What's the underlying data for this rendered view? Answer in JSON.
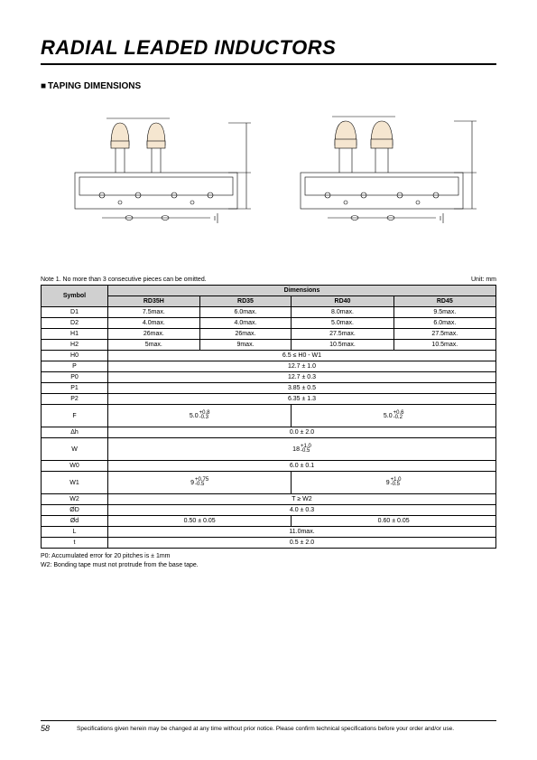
{
  "title": "RADIAL LEADED INDUCTORS",
  "subtitle": "TAPING DIMENSIONS",
  "note1": "Note 1. No more than 3 consecutive pieces can be omitted.",
  "unit": "Unit: mm",
  "header": {
    "symbol": "Symbol",
    "dimensions": "Dimensions",
    "cols": [
      "RD35H",
      "RD35",
      "RD40",
      "RD45"
    ]
  },
  "rows4": [
    {
      "sym": "D1",
      "vals": [
        "7.5max.",
        "6.0max.",
        "8.0max.",
        "9.5max."
      ]
    },
    {
      "sym": "D2",
      "vals": [
        "4.0max.",
        "4.0max.",
        "5.0max.",
        "6.0max."
      ]
    },
    {
      "sym": "H1",
      "vals": [
        "26max.",
        "26max.",
        "27.5max.",
        "27.5max."
      ]
    },
    {
      "sym": "H2",
      "vals": [
        "5max.",
        "9max.",
        "10.5max.",
        "10.5max."
      ]
    }
  ],
  "rows1": [
    {
      "sym": "H0",
      "val": "6.5 ≤ H0 - W1"
    },
    {
      "sym": "P",
      "val": "12.7 ± 1.0"
    },
    {
      "sym": "P0",
      "val": "12.7 ± 0.3"
    },
    {
      "sym": "P1",
      "val": "3.85 ± 0.5"
    },
    {
      "sym": "P2",
      "val": "6.35 ± 1.3"
    }
  ],
  "rowF": {
    "sym": "F",
    "left": {
      "base": "5.0",
      "p": "+0.8",
      "m": "-0.3"
    },
    "right": {
      "base": "5.0",
      "p": "+0.6",
      "m": "-0.2"
    }
  },
  "rowDh": {
    "sym": "Δh",
    "val": "0.0 ± 2.0"
  },
  "rowW": {
    "sym": "W",
    "base": "18",
    "p": "+1.0",
    "m": "-0.5"
  },
  "rowW0": {
    "sym": "W0",
    "val": "6.0 ± 0.1"
  },
  "rowW1": {
    "sym": "W1",
    "left": {
      "base": "9",
      "p": "+0.75",
      "m": "-0.5"
    },
    "right": {
      "base": "9",
      "p": "+1.0",
      "m": "-0.5"
    }
  },
  "rowW2": {
    "sym": "W2",
    "val": "T ≥ W2"
  },
  "rowPhiD": {
    "sym": "ØD",
    "val": "4.0 ± 0.3"
  },
  "rowPhid": {
    "sym": "Ød",
    "left": "0.50 ± 0.05",
    "right": "0.60 ± 0.05"
  },
  "rowL": {
    "sym": "L",
    "val": "11.0max."
  },
  "rowt": {
    "sym": "t",
    "val": "0.5 ± 2.0"
  },
  "footnotes": [
    "P0: Accumulated error for 20 pitches is ± 1mm",
    "W2: Bonding tape must not protrude from the base tape."
  ],
  "footer": {
    "page": "58",
    "disclaimer": "Specifications given herein may be changed at any time without prior notice. Please confirm technical specifications before your order and/or use."
  },
  "diagram_style": {
    "stroke": "#000000",
    "fill_body": "#f5e6d0",
    "line_width": 0.6
  }
}
